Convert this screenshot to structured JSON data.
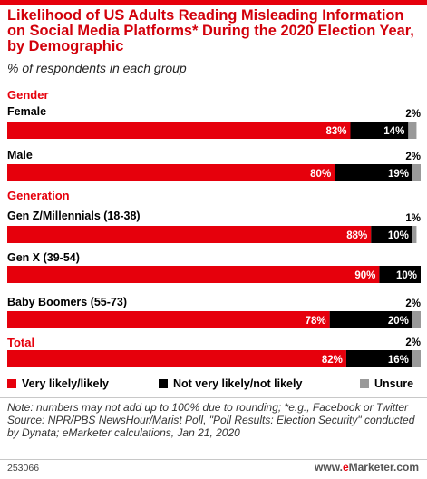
{
  "title": "Likelihood of US Adults Reading Misleading Information on Social Media Platforms* During the 2020 Election Year, by Demographic",
  "subtitle": "% of respondents in each group",
  "colors": {
    "very": "#e6000c",
    "not": "#000000",
    "unsure": "#999999",
    "accent": "#d2010b"
  },
  "chart_data": {
    "type": "bar",
    "orientation": "horizontal",
    "stacked": true,
    "value_suffix": "%",
    "xlim": [
      0,
      100
    ],
    "legend_position": "bottom",
    "groups": [
      {
        "label": "Gender",
        "categories": [
          "Female",
          "Male"
        ]
      },
      {
        "label": "Generation",
        "categories": [
          "Gen Z/Millennials (18-38)",
          "Gen X (39-54)",
          "Baby Boomers (55-73)"
        ]
      },
      {
        "label": "Total",
        "categories": []
      }
    ],
    "categories": [
      "Female",
      "Male",
      "Gen Z/Millennials (18-38)",
      "Gen X (39-54)",
      "Baby Boomers (55-73)",
      "Total"
    ],
    "series": [
      {
        "name": "Very likely/likely",
        "values": [
          83,
          80,
          88,
          90,
          78,
          82
        ]
      },
      {
        "name": "Not very likely/not likely",
        "values": [
          14,
          19,
          10,
          10,
          20,
          16
        ]
      },
      {
        "name": "Unsure",
        "values": [
          2,
          2,
          1,
          0,
          2,
          2
        ]
      }
    ],
    "data_labels": [
      [
        "83%",
        "14%",
        "2%"
      ],
      [
        "80%",
        "19%",
        "2%"
      ],
      [
        "88%",
        "10%",
        "1%"
      ],
      [
        "90%",
        "10%",
        ""
      ],
      [
        "78%",
        "20%",
        "2%"
      ],
      [
        "82%",
        "16%",
        "2%"
      ]
    ]
  },
  "legend": {
    "very": "Very likely/likely",
    "not": "Not very likely/not likely",
    "unsure": "Unsure"
  },
  "note": "Note: numbers may not add up to 100% due to rounding; *e.g., Facebook or Twitter",
  "source": "Source: NPR/PBS NewsHour/Marist Poll, \"Poll Results: Election Security\" conducted by Dynata; eMarketer calculations, Jan 21, 2020",
  "footer": {
    "id": "253066",
    "brand_prefix": "www.",
    "brand_e": "e",
    "brand_rest": "Marketer.com"
  }
}
